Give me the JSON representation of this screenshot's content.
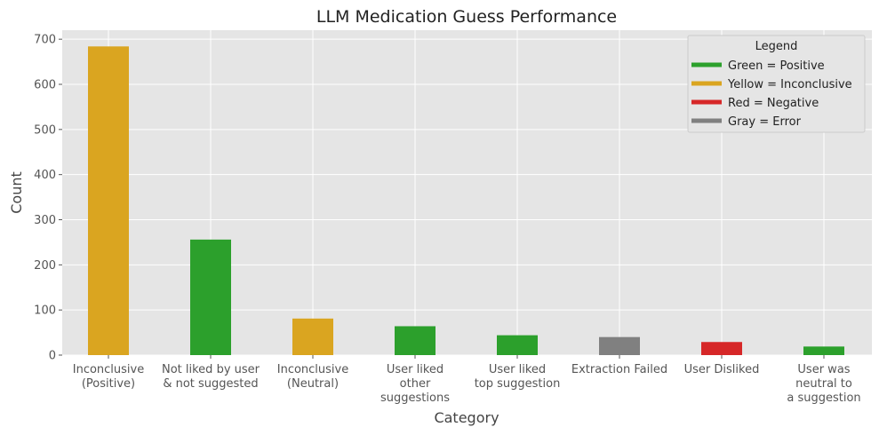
{
  "chart_data": {
    "type": "bar",
    "title": "LLM Medication Guess Performance",
    "xlabel": "Category",
    "ylabel": "Count",
    "ylim": [
      0,
      720
    ],
    "yticks": [
      0,
      100,
      200,
      300,
      400,
      500,
      600,
      700
    ],
    "grid": true,
    "categories": [
      "Inconclusive\n(Positive)",
      "Not liked by user\n& not suggested",
      "Inconclusive\n(Neutral)",
      "User liked\nother\nsuggestions",
      "User liked\ntop suggestion",
      "Extraction Failed",
      "User Disliked",
      "User was\nneutral to\na suggestion"
    ],
    "values": [
      684,
      256,
      81,
      64,
      44,
      40,
      29,
      19
    ],
    "bar_colors": [
      "#DAA520",
      "#2CA02C",
      "#DAA520",
      "#2CA02C",
      "#2CA02C",
      "#808080",
      "#D62728",
      "#2CA02C"
    ],
    "legend": {
      "title": "Legend",
      "placement": "top-right",
      "entries": [
        {
          "label": "Green = Positive",
          "color": "#2CA02C"
        },
        {
          "label": "Yellow = Inconclusive",
          "color": "#DAA520"
        },
        {
          "label": "Red = Negative",
          "color": "#D62728"
        },
        {
          "label": "Gray = Error",
          "color": "#808080"
        }
      ]
    },
    "style": {
      "plot_background": "#E5E5E5",
      "grid_color": "#FFFFFF"
    }
  }
}
